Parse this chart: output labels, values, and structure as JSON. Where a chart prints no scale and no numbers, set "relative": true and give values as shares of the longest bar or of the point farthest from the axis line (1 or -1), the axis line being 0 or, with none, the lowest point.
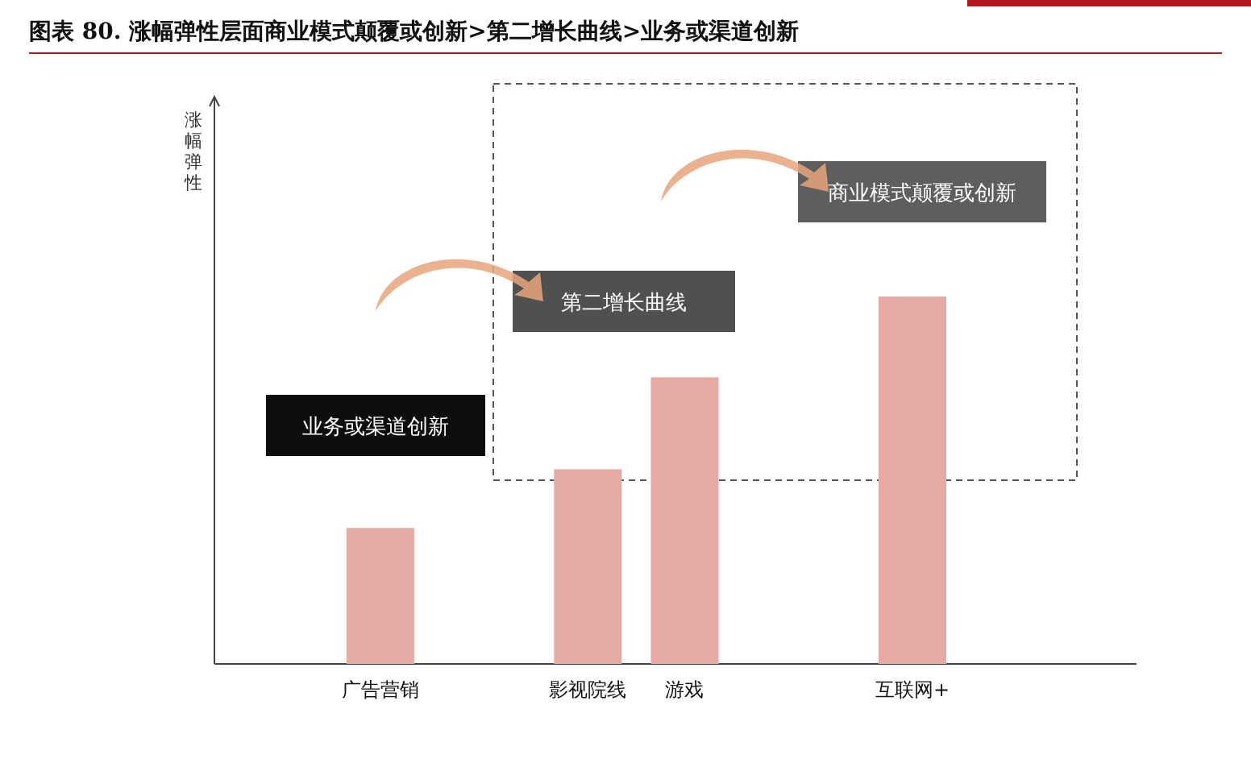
{
  "chart_data": {
    "type": "bar",
    "title": "图表 80. 涨幅弹性层面商业模式颠覆或创新>第二增长曲线>业务或渠道创新",
    "categories": [
      "广告营销",
      "影视院线",
      "游戏",
      "互联网+"
    ],
    "values": [
      0.37,
      0.53,
      0.78,
      1
    ],
    "color": "#e6aaa5",
    "relative": true,
    "annotations": [
      "涨幅弹性",
      "业务或渠道创新",
      "第二增长曲线",
      "商业模式颠覆或创新"
    ]
  }
}
